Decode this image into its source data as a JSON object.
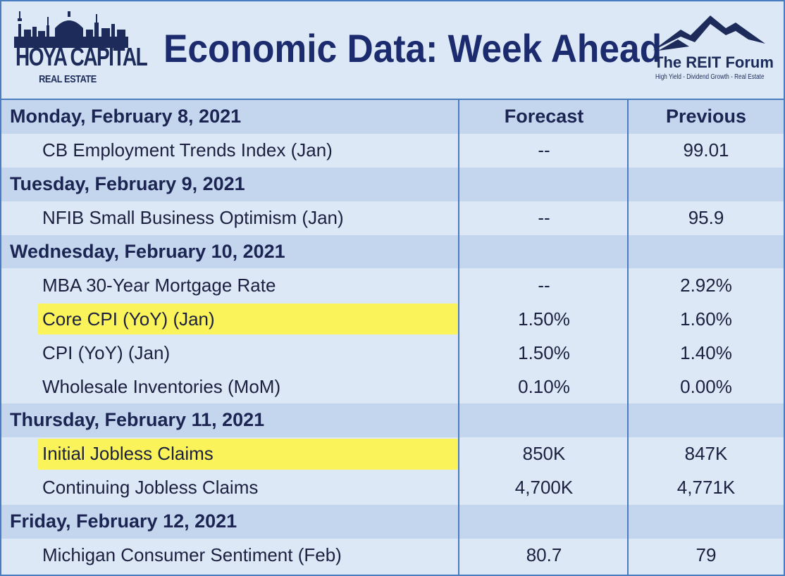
{
  "header": {
    "logo_left": {
      "name": "HOYA CAPITAL",
      "sub": "REAL ESTATE"
    },
    "title": "Economic Data: Week Ahead",
    "logo_right": {
      "name": "The REIT Forum",
      "tagline": "High Yield - Dividend Growth - Real Estate"
    }
  },
  "columns": {
    "event": "Monday, February 8, 2021",
    "forecast": "Forecast",
    "previous": "Previous"
  },
  "rows": [
    {
      "event": "CB Employment Trends Index (Jan)",
      "forecast": "--",
      "previous": "99.01"
    },
    {
      "day": "Tuesday, February 9, 2021"
    },
    {
      "event": "NFIB Small Business Optimism (Jan)",
      "forecast": "--",
      "previous": "95.9"
    },
    {
      "day": "Wednesday, February 10, 2021"
    },
    {
      "event": "MBA 30-Year Mortgage Rate",
      "forecast": "--",
      "previous": "2.92%"
    },
    {
      "event": "Core CPI (YoY) (Jan)",
      "forecast": "1.50%",
      "previous": "1.60%",
      "highlight": true
    },
    {
      "event": "CPI (YoY) (Jan)",
      "forecast": "1.50%",
      "previous": "1.40%"
    },
    {
      "event": "Wholesale Inventories (MoM)",
      "forecast": "0.10%",
      "previous": "0.00%"
    },
    {
      "day": "Thursday, February 11, 2021"
    },
    {
      "event": "Initial Jobless Claims",
      "forecast": "850K",
      "previous": "847K",
      "highlight": true
    },
    {
      "event": "Continuing Jobless Claims",
      "forecast": "4,700K",
      "previous": "4,771K"
    },
    {
      "day": "Friday, February 12, 2021"
    },
    {
      "event": "Michigan Consumer Sentiment (Feb)",
      "forecast": "80.7",
      "previous": "79"
    }
  ],
  "colors": {
    "border": "#4a7cc0",
    "day_row": "#c3d6ee",
    "item_row": "#dce8f5",
    "highlight": "#fbf35a",
    "title": "#1c2b6e"
  }
}
